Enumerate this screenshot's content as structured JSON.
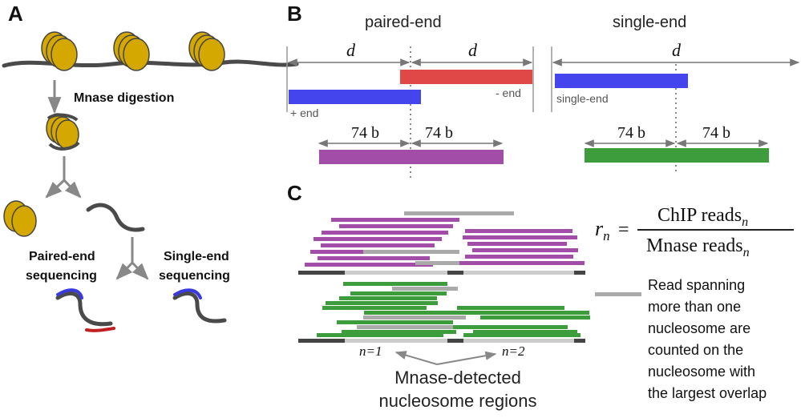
{
  "panels": {
    "a": "A",
    "b": "B",
    "c": "C"
  },
  "panel_a": {
    "step1": "Mnase digestion",
    "paired_line1": "Paired-end",
    "paired_line2": "sequencing",
    "single_line1": "Single-end",
    "single_line2": "sequencing"
  },
  "panel_b": {
    "paired_title": "paired-end",
    "single_title": "single-end",
    "d": "d",
    "minus_end": "- end",
    "plus_end": "+ end",
    "single_read_label": "single-end",
    "half_len": "74 b"
  },
  "panel_c": {
    "n1": "n=1",
    "n2": "n=2",
    "regions_line1": "Mnase-detected",
    "regions_line2": "nucleosome regions",
    "formula_lhs": "r",
    "formula_sub": "n",
    "formula_eq": "=",
    "numerator": "ChIP reads",
    "denominator": "Mnase reads",
    "legend_lines": [
      "Read spanning",
      "more than one",
      "nucleosome are",
      "counted on the",
      "nucleosome with",
      "the largest overlap"
    ]
  },
  "colors": {
    "nucleosome": "#d4a800",
    "dna": "#4a4a4a",
    "blue": "#4545ee",
    "red": "#e04848",
    "purple": "#a24ea8",
    "green": "#3d9d3d",
    "gray_read": "#aaaaaa",
    "arrow": "#888888"
  }
}
